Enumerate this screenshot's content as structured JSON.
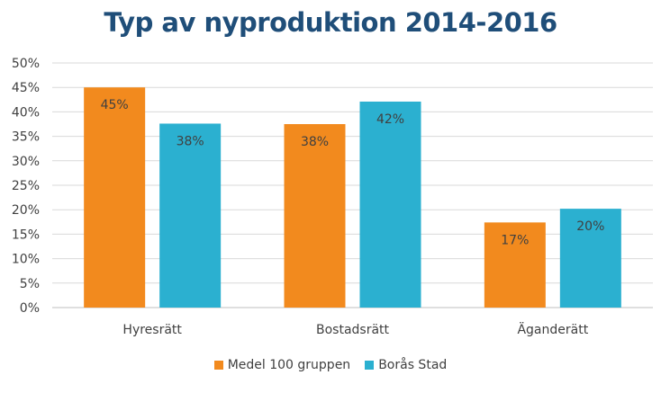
{
  "chart_data": {
    "type": "bar",
    "title": "Typ av nyproduktion 2014-2016",
    "categories": [
      "Hyresrätt",
      "Bostadsrätt",
      "Äganderätt"
    ],
    "series": [
      {
        "name": "Medel 100 gruppen",
        "values": [
          45,
          37.5,
          17.4
        ],
        "labels": [
          "45%",
          "38%",
          "17%"
        ],
        "color": "#f28a1e"
      },
      {
        "name": "Borås Stad",
        "values": [
          37.6,
          42.1,
          20.2
        ],
        "labels": [
          "38%",
          "42%",
          "20%"
        ],
        "color": "#2bb0d0"
      }
    ],
    "ylim": [
      0,
      50
    ],
    "yticks": [
      "0%",
      "5%",
      "10%",
      "15%",
      "20%",
      "25%",
      "30%",
      "35%",
      "40%",
      "45%",
      "50%"
    ],
    "grid": true,
    "legend_position": "bottom"
  }
}
